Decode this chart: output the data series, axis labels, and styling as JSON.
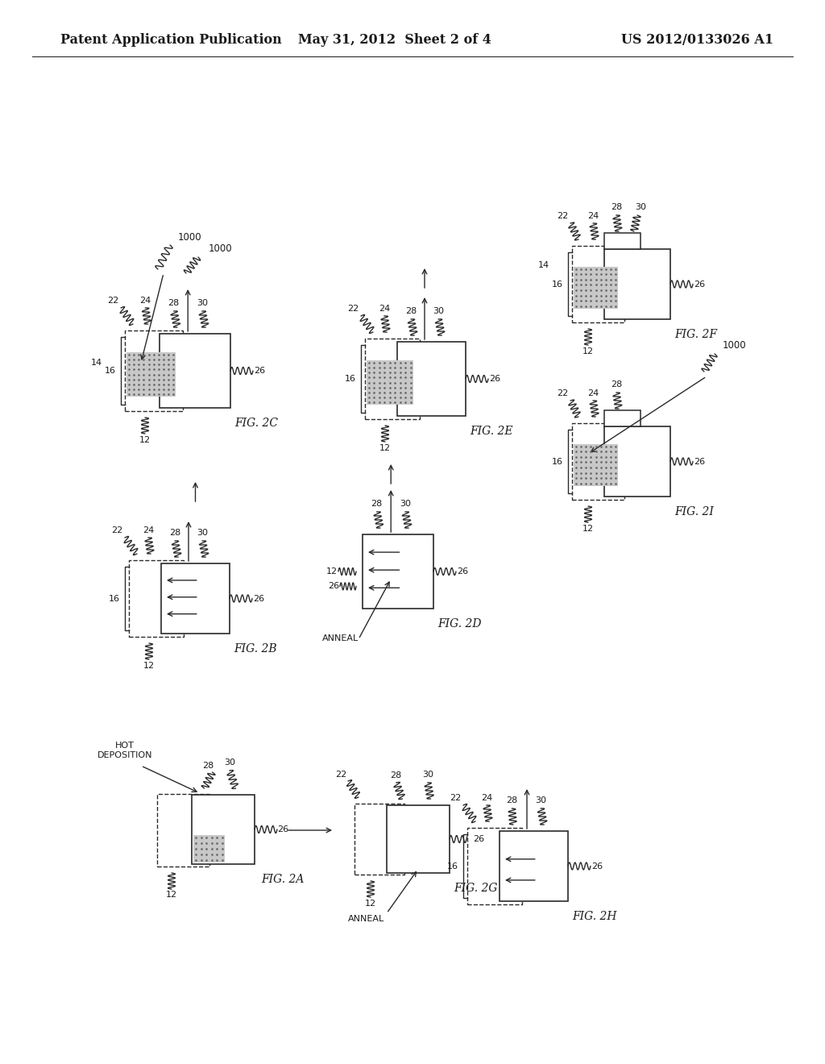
{
  "background_color": "#ffffff",
  "header_left": "Patent Application Publication",
  "header_center": "May 31, 2012  Sheet 2 of 4",
  "header_right": "US 2012/0133026 A1",
  "line_color": "#2a2a2a",
  "text_color": "#1a1a1a"
}
